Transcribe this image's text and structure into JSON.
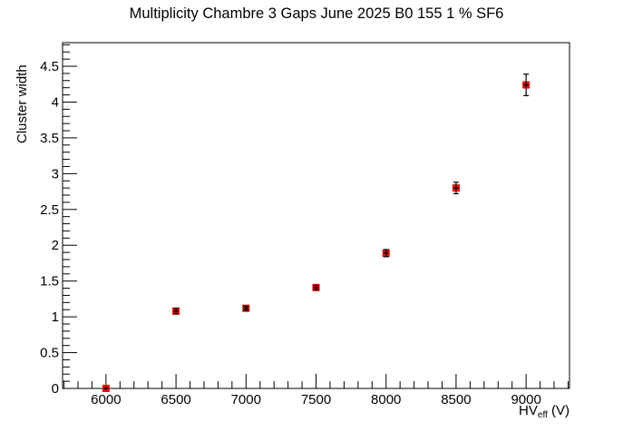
{
  "chart_data": {
    "type": "scatter",
    "title": "Multiplicity Chambre 3 Gaps June 2025 B0 155 1 % SF6",
    "xlabel": "HV_eff (V)",
    "xlabel_main": "HV",
    "xlabel_sub": "eff",
    "xlabel_unit": " (V)",
    "ylabel": "Cluster width",
    "xlim": [
      5690,
      9310
    ],
    "ylim": [
      0,
      4.83
    ],
    "grid": false,
    "legend": null,
    "x_ticks": [
      6000,
      6500,
      7000,
      7500,
      8000,
      8500,
      9000
    ],
    "x_tick_labels": [
      "6000",
      "6500",
      "7000",
      "7500",
      "8000",
      "8500",
      "9000"
    ],
    "y_ticks": [
      0,
      0.5,
      1,
      1.5,
      2,
      2.5,
      3,
      3.5,
      4,
      4.5
    ],
    "y_tick_labels": [
      "0",
      "0.5",
      "1",
      "1.5",
      "2",
      "2.5",
      "3",
      "3.5",
      "4",
      "4.5"
    ],
    "marker": {
      "shape": "square",
      "color": "#ff0000",
      "errorbar_color": "#000000"
    },
    "series": [
      {
        "name": "Cluster width",
        "x": [
          6000,
          6500,
          7000,
          7500,
          8000,
          8500,
          9000
        ],
        "y": [
          0.0,
          1.08,
          1.12,
          1.41,
          1.89,
          2.8,
          4.24
        ],
        "yerr": [
          0.0,
          0.04,
          0.03,
          0.03,
          0.05,
          0.08,
          0.15
        ]
      }
    ]
  }
}
